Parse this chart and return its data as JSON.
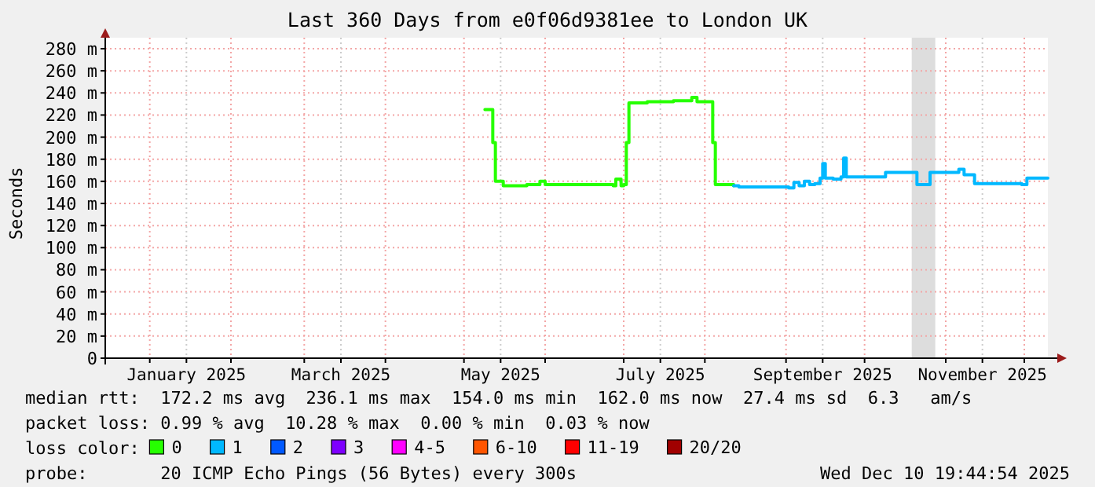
{
  "chart_data": {
    "type": "step",
    "title": "Last 360 Days from e0f06d9381ee to London UK",
    "ylabel": "Seconds",
    "xlim": [
      "2024-12-15",
      "2025-12-10"
    ],
    "xticks": [
      {
        "value": "2025-01-01",
        "label": null
      },
      {
        "value": "2025-01-15",
        "label": "January 2025"
      },
      {
        "value": "2025-02-01",
        "label": null
      },
      {
        "value": "2025-03-01",
        "label": null
      },
      {
        "value": "2025-03-15",
        "label": "March 2025"
      },
      {
        "value": "2025-04-01",
        "label": null
      },
      {
        "value": "2025-05-01",
        "label": null
      },
      {
        "value": "2025-05-15",
        "label": "May 2025"
      },
      {
        "value": "2025-06-01",
        "label": null
      },
      {
        "value": "2025-07-01",
        "label": null
      },
      {
        "value": "2025-07-15",
        "label": "July 2025"
      },
      {
        "value": "2025-08-01",
        "label": null
      },
      {
        "value": "2025-09-01",
        "label": null
      },
      {
        "value": "2025-09-15",
        "label": "September 2025"
      },
      {
        "value": "2025-10-01",
        "label": null
      },
      {
        "value": "2025-11-01",
        "label": null
      },
      {
        "value": "2025-11-15",
        "label": "November 2025"
      },
      {
        "value": "2025-12-01",
        "label": null
      }
    ],
    "ylim": [
      0,
      280
    ],
    "yticks": [
      0,
      {
        "value": 20,
        "label": "20 m"
      },
      {
        "value": 40,
        "label": "40 m"
      },
      {
        "value": 60,
        "label": "60 m"
      },
      {
        "value": 80,
        "label": "80 m"
      },
      {
        "value": 100,
        "label": "100 m"
      },
      {
        "value": 120,
        "label": "120 m"
      },
      {
        "value": 140,
        "label": "140 m"
      },
      {
        "value": 160,
        "label": "160 m"
      },
      {
        "value": 180,
        "label": "180 m"
      },
      {
        "value": 200,
        "label": "200 m"
      },
      {
        "value": 220,
        "label": "220 m"
      },
      {
        "value": 240,
        "label": "240 m"
      },
      {
        "value": 260,
        "label": "260 m"
      },
      {
        "value": 280,
        "label": "280 m"
      }
    ],
    "grid": true,
    "legend": "bottom",
    "legend_title": "loss color:",
    "bands": [
      {
        "axis": "x",
        "from": "2025-10-19",
        "to": "2025-10-28",
        "color": "#dddddd"
      }
    ],
    "series": [
      {
        "name": "0",
        "color": "#26ff00",
        "x": [
          "2025-05-09",
          "2025-05-11",
          "2025-05-12",
          "2025-05-13",
          "2025-05-16",
          "2025-05-25",
          "2025-05-30",
          "2025-06-01",
          "2025-06-15",
          "2025-06-27",
          "2025-06-28",
          "2025-06-30",
          "2025-07-01",
          "2025-07-02",
          "2025-07-03",
          "2025-07-10",
          "2025-07-20",
          "2025-07-27",
          "2025-07-29",
          "2025-08-03",
          "2025-08-04",
          "2025-08-05",
          "2025-08-12"
        ],
        "values": [
          225,
          225,
          195,
          160,
          156,
          157,
          160,
          157,
          157,
          156,
          162,
          156,
          157,
          195,
          231,
          232,
          233,
          236,
          232,
          232,
          195,
          157,
          156
        ]
      },
      {
        "name": "1",
        "color": "#00b8ff",
        "x": [
          "2025-08-12",
          "2025-08-14",
          "2025-08-31",
          "2025-09-02",
          "2025-09-04",
          "2025-09-06",
          "2025-09-08",
          "2025-09-10",
          "2025-09-12",
          "2025-09-14",
          "2025-09-15",
          "2025-09-16",
          "2025-09-19",
          "2025-09-22",
          "2025-09-23",
          "2025-09-24",
          "2025-09-27",
          "2025-10-08",
          "2025-10-09",
          "2025-10-20",
          "2025-10-21",
          "2025-10-25",
          "2025-10-26",
          "2025-11-05",
          "2025-11-06",
          "2025-11-08",
          "2025-11-12",
          "2025-11-28",
          "2025-11-30",
          "2025-12-02",
          "2025-12-10"
        ],
        "values": [
          156,
          155,
          155,
          154,
          159,
          156,
          160,
          157,
          158,
          163,
          176,
          163,
          162,
          164,
          181,
          164,
          164,
          164,
          168,
          168,
          157,
          157,
          168,
          168,
          171,
          166,
          158,
          158,
          157,
          163,
          163
        ]
      },
      {
        "name": "2",
        "color": "#0059ff"
      },
      {
        "name": "3",
        "color": "#7e00ff"
      },
      {
        "name": "4-5",
        "color": "#ff00ff"
      },
      {
        "name": "6-10",
        "color": "#ff5500"
      },
      {
        "name": "11-19",
        "color": "#ff0000"
      },
      {
        "name": "20/20",
        "color": "#a10000"
      }
    ],
    "annotations": [
      "median rtt:  172.2 ms avg  236.1 ms max  154.0 ms min  162.0 ms now  27.4 ms sd  6.3   am/s",
      "packet loss: 0.99 % avg  10.28 % max  0.00 % min  0.03 % now",
      "probe:       20 ICMP Echo Pings (56 Bytes) every 300s",
      "Wed Dec 10 19:44:54 2025"
    ]
  }
}
